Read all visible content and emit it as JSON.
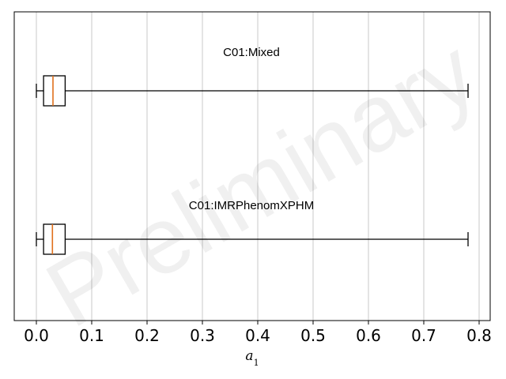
{
  "chart_data": {
    "type": "boxplot",
    "orientation": "horizontal",
    "title": "",
    "xlabel": "a",
    "xlabel_subscript": "1",
    "ylabel": "",
    "xlim": [
      -0.04,
      0.82
    ],
    "xticks": [
      0.0,
      0.1,
      0.2,
      0.3,
      0.4,
      0.5,
      0.6,
      0.7,
      0.8
    ],
    "xtick_labels": [
      "0.0",
      "0.1",
      "0.2",
      "0.3",
      "0.4",
      "0.5",
      "0.6",
      "0.7",
      "0.8"
    ],
    "grid": "vertical",
    "boxes": [
      {
        "label": "C01:Mixed",
        "whisker_low": 0.0,
        "q1": 0.013,
        "median": 0.03,
        "q3": 0.052,
        "whisker_high": 0.78
      },
      {
        "label": "C01:IMRPhenomXPHM",
        "whisker_low": 0.0,
        "q1": 0.013,
        "median": 0.029,
        "q3": 0.052,
        "whisker_high": 0.78
      }
    ],
    "colors": {
      "box": "#000000",
      "median": "#e0701c",
      "grid": "#c8c8c8"
    }
  },
  "watermark": "Preliminary"
}
